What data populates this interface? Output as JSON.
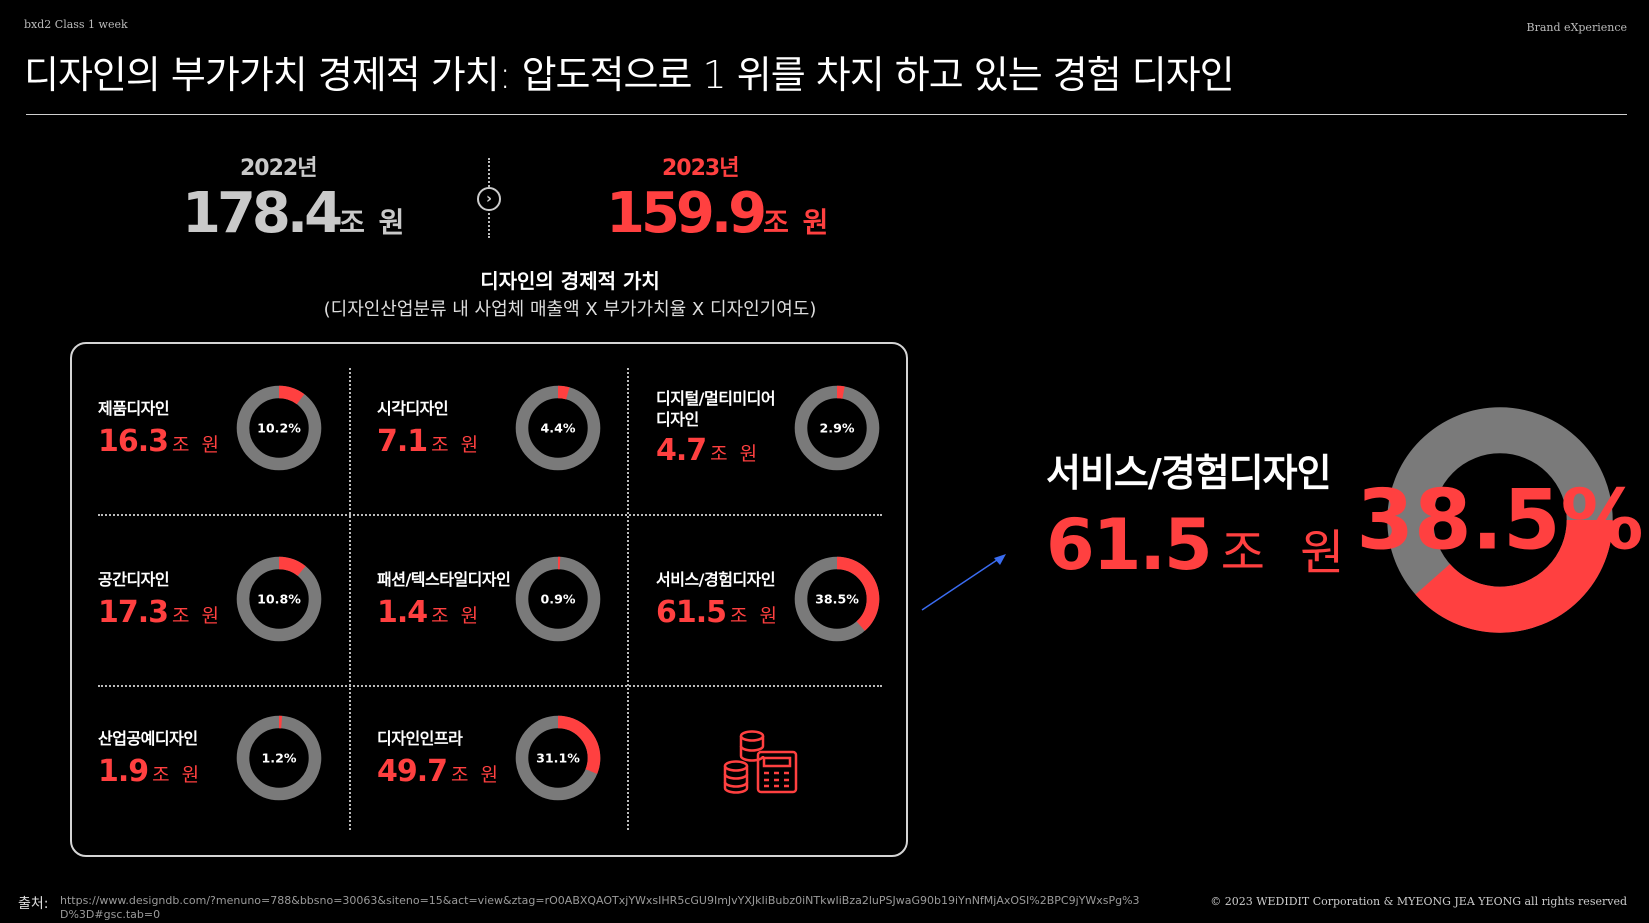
{
  "header": {
    "course": "bxd2 Class 1 week",
    "brand": "Brand eXperience",
    "title": "디자인의 부가가치 경제적 가치: 압도적으로 1 위를 차지 하고 있는 경험 디자인"
  },
  "comparison": {
    "y2022": {
      "label": "2022년",
      "value": "178.4",
      "unit": "조 원"
    },
    "y2023": {
      "label": "2023년",
      "value": "159.9",
      "unit": "조 원"
    },
    "arrow_icon": "chevron-right-circle-icon"
  },
  "economic": {
    "title": "디자인의 경제적 가치",
    "formula": "(디자인산업분류 내 사업체 매출액 X 부가가치율 X 디자인기여도)"
  },
  "colors": {
    "accent": "#ff4040",
    "ring_gray": "#7a7a7a",
    "background": "#000000"
  },
  "categories": [
    {
      "name": "제품디자인",
      "value": "16.3",
      "unit": "조 원",
      "percent_label": "10.2%",
      "percent": 10.2
    },
    {
      "name": "시각디자인",
      "value": "7.1",
      "unit": "조 원",
      "percent_label": "4.4%",
      "percent": 4.4
    },
    {
      "name": "디지털/멀티미디어 디자인",
      "value": "4.7",
      "unit": "조 원",
      "percent_label": "2.9%",
      "percent": 2.9
    },
    {
      "name": "공간디자인",
      "value": "17.3",
      "unit": "조 원",
      "percent_label": "10.8%",
      "percent": 10.8
    },
    {
      "name": "패션/텍스타일디자인",
      "value": "1.4",
      "unit": "조 원",
      "percent_label": "0.9%",
      "percent": 0.9
    },
    {
      "name": "서비스/경험디자인",
      "value": "61.5",
      "unit": "조 원",
      "percent_label": "38.5%",
      "percent": 38.5
    },
    {
      "name": "산업공예디자인",
      "value": "1.9",
      "unit": "조 원",
      "percent_label": "1.2%",
      "percent": 1.2
    },
    {
      "name": "디자인인프라",
      "value": "49.7",
      "unit": "조 원",
      "percent_label": "31.1%",
      "percent": 31.1
    }
  ],
  "panel_icon": "coins-calculator-icon",
  "highlight": {
    "name": "서비스/경험디자인",
    "value": "61.5",
    "unit": "조 원",
    "percent_label": "38.5%",
    "percent": 38.5
  },
  "footer": {
    "source_label": "출처:",
    "source_url": "https://www.designdb.com/?menuno=788&bbsno=30063&siteno=15&act=view&ztag=rO0ABXQAOTxjYWxsIHR5cGU9ImJvYXJkIiBubz0iNTkwIiBza2luPSJwaG90b19iYnNfMjAxOSI%2BPC9jYWxsPg%3D%3D#gsc.tab=0",
    "copyright": "© 2023 WEDIDIT Corporation & MYEONG JEA YEONG all rights reserved"
  }
}
